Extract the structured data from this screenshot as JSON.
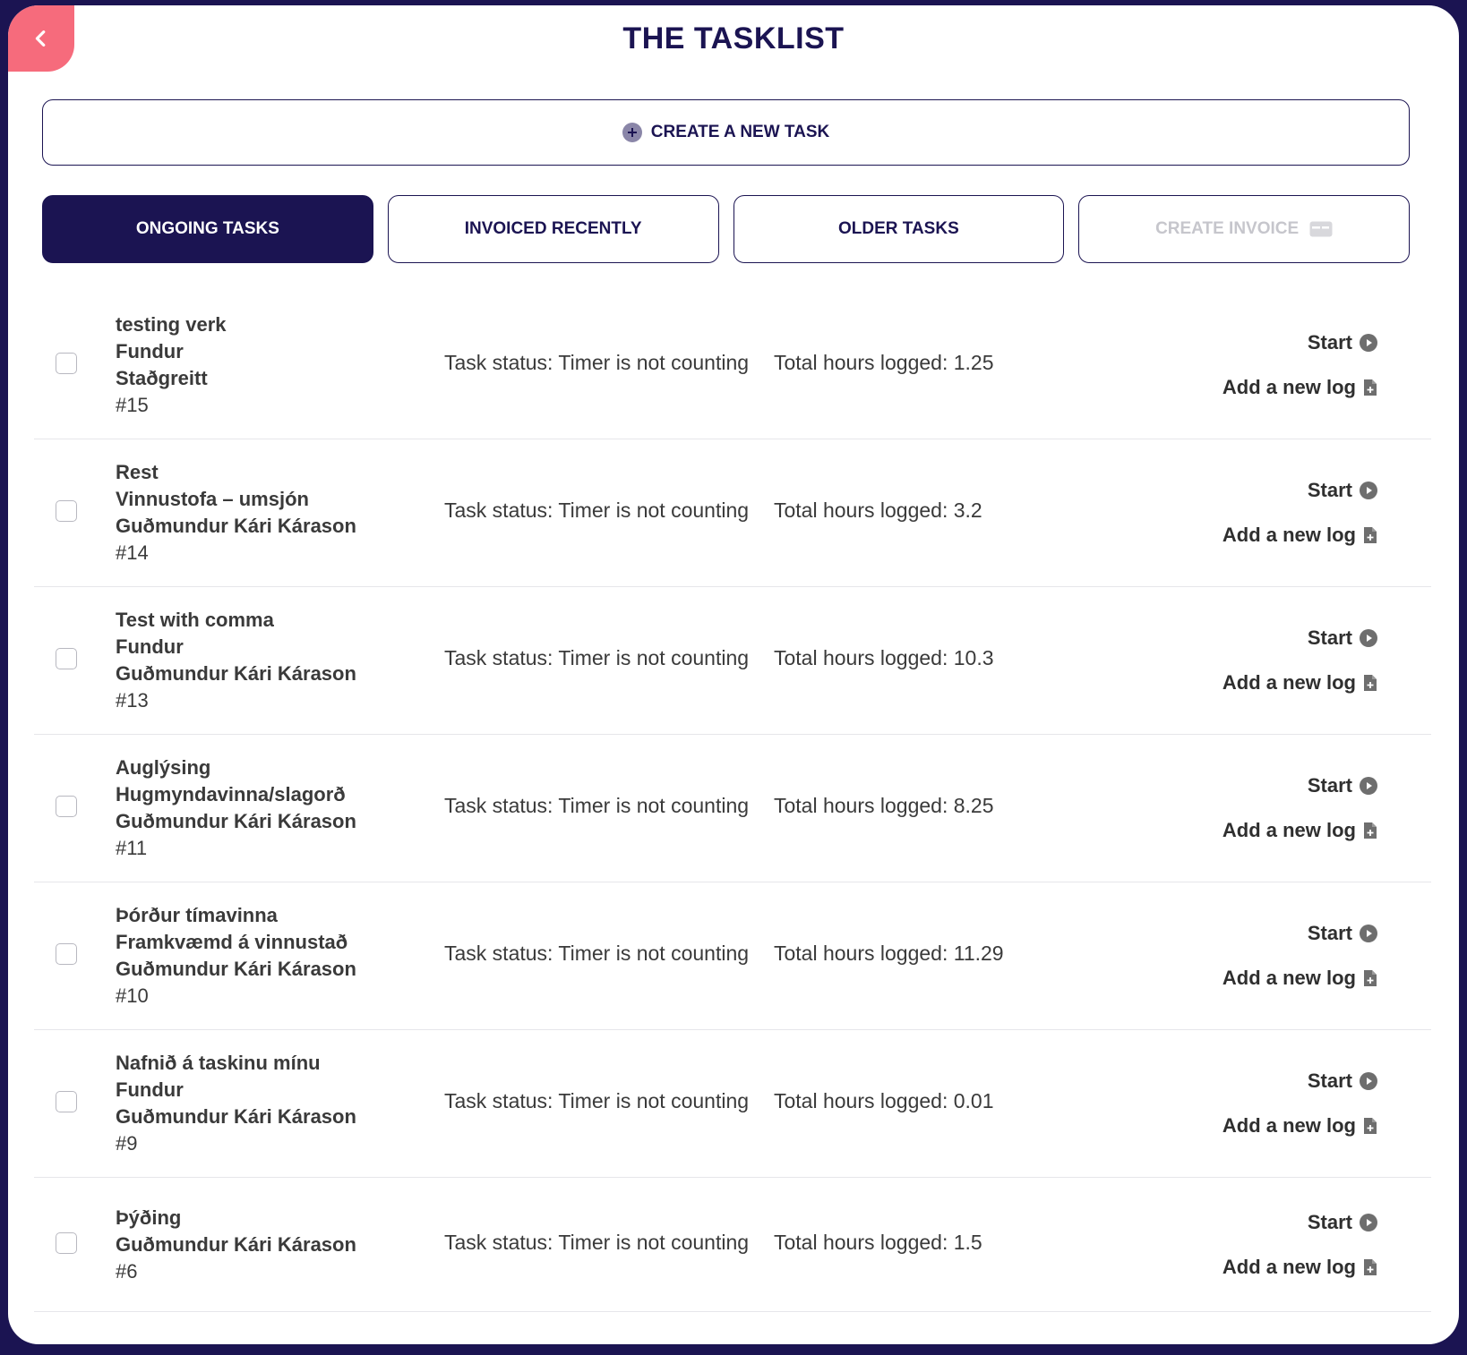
{
  "header": {
    "title": "THE TASKLIST"
  },
  "create_task": {
    "label": "CREATE A NEW TASK"
  },
  "tabs": [
    {
      "label": "ONGOING TASKS",
      "active": true
    },
    {
      "label": "INVOICED RECENTLY",
      "active": false
    },
    {
      "label": "OLDER TASKS",
      "active": false
    },
    {
      "label": "CREATE INVOICE",
      "active": false,
      "disabled": true
    }
  ],
  "tasks": [
    {
      "lines": [
        "testing verk",
        "Fundur",
        "Staðgreitt"
      ],
      "number": "#15",
      "status": "Task status: Timer is not counting",
      "hours": "Total hours logged: 1.25",
      "start_label": "Start",
      "log_label": "Add a new log"
    },
    {
      "lines": [
        "Rest",
        "Vinnustofa – umsjón",
        "Guðmundur Kári Kárason"
      ],
      "number": "#14",
      "status": "Task status: Timer is not counting",
      "hours": "Total hours logged: 3.2",
      "start_label": "Start",
      "log_label": "Add a new log"
    },
    {
      "lines": [
        "Test with comma",
        "Fundur",
        "Guðmundur Kári Kárason"
      ],
      "number": "#13",
      "status": "Task status: Timer is not counting",
      "hours": "Total hours logged: 10.3",
      "start_label": "Start",
      "log_label": "Add a new log"
    },
    {
      "lines": [
        "Auglýsing",
        "Hugmyndavinna/slagorð",
        "Guðmundur Kári Kárason"
      ],
      "number": "#11",
      "status": "Task status: Timer is not counting",
      "hours": "Total hours logged: 8.25",
      "start_label": "Start",
      "log_label": "Add a new log"
    },
    {
      "lines": [
        "Þórður tímavinna",
        "Framkvæmd á vinnustað",
        "Guðmundur Kári Kárason"
      ],
      "number": "#10",
      "status": "Task status: Timer is not counting",
      "hours": "Total hours logged: 11.29",
      "start_label": "Start",
      "log_label": "Add a new log"
    },
    {
      "lines": [
        "Nafnið á taskinu mínu",
        "Fundur",
        "Guðmundur Kári Kárason"
      ],
      "number": "#9",
      "status": "Task status: Timer is not counting",
      "hours": "Total hours logged: 0.01",
      "start_label": "Start",
      "log_label": "Add a new log"
    },
    {
      "lines": [
        "Þýðing",
        "Guðmundur Kári Kárason"
      ],
      "number": "#6",
      "status": "Task status: Timer is not counting",
      "hours": "Total hours logged: 1.5",
      "start_label": "Start",
      "log_label": "Add a new log"
    }
  ],
  "icons": {
    "back": "chevron-left-icon",
    "create": "plus-circle-icon",
    "invoice": "credit-card-icon",
    "start": "play-icon",
    "log": "document-plus-icon"
  },
  "colors": {
    "primary": "#1b1452",
    "accent": "#f66b7c",
    "disabled_text": "#c6c6cc"
  }
}
